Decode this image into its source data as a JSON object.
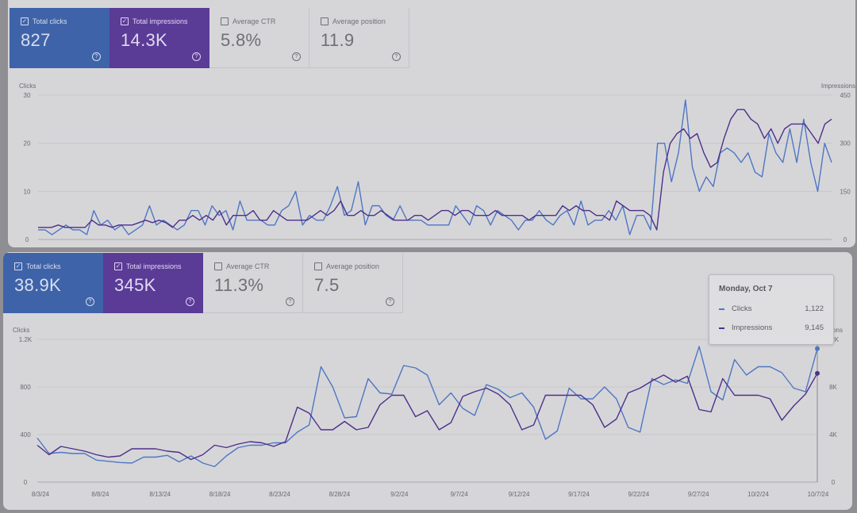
{
  "colors": {
    "clicks": "#4f76c2",
    "impressions": "#4e2f8a",
    "card_clicks_bg": "#3f63a8",
    "card_impr_bg": "#5a3b96"
  },
  "panel_top": {
    "cards": [
      {
        "label": "Total clicks",
        "value": "827",
        "checked": true
      },
      {
        "label": "Total impressions",
        "value": "14.3K",
        "checked": true
      },
      {
        "label": "Average CTR",
        "value": "5.8%",
        "checked": false
      },
      {
        "label": "Average position",
        "value": "11.9",
        "checked": false
      }
    ]
  },
  "panel_bottom": {
    "cards": [
      {
        "label": "Total clicks",
        "value": "38.9K",
        "checked": true
      },
      {
        "label": "Total impressions",
        "value": "345K",
        "checked": true
      },
      {
        "label": "Average CTR",
        "value": "11.3%",
        "checked": false
      },
      {
        "label": "Average position",
        "value": "7.5",
        "checked": false
      }
    ]
  },
  "tooltip": {
    "date": "Monday, Oct 7",
    "rows": [
      {
        "label": "Clicks",
        "value": "1,122"
      },
      {
        "label": "Impressions",
        "value": "9,145"
      }
    ]
  },
  "chart_data": [
    {
      "type": "line",
      "xlabel": "",
      "ylabel_left": "Clicks",
      "ylabel_right": "Impressions",
      "y_left_ticks": [
        "0",
        "10",
        "20",
        "30"
      ],
      "y_right_ticks": [
        "0",
        "150",
        "300",
        "450"
      ],
      "ylim_left": [
        0,
        30
      ],
      "ylim_right": [
        0,
        450
      ],
      "grid": true,
      "series": [
        {
          "name": "Clicks",
          "axis": "left",
          "values": [
            2,
            2,
            1,
            2,
            3,
            2,
            2,
            1,
            6,
            3,
            4,
            2,
            3,
            1,
            2,
            3,
            7,
            3,
            4,
            3,
            2,
            3,
            6,
            6,
            3,
            7,
            5,
            6,
            2,
            8,
            4,
            4,
            4,
            3,
            3,
            6,
            7,
            10,
            3,
            5,
            4,
            4,
            7,
            11,
            5,
            6,
            12,
            3,
            7,
            7,
            5,
            4,
            7,
            4,
            4,
            4,
            3,
            3,
            3,
            3,
            7,
            5,
            3,
            7,
            6,
            3,
            6,
            5,
            4,
            2,
            4,
            4,
            6,
            4,
            3,
            5,
            6,
            3,
            8,
            3,
            4,
            4,
            6,
            4,
            7,
            1,
            5,
            5,
            2,
            20,
            20,
            12,
            18,
            29,
            15,
            10,
            13,
            11,
            18,
            19,
            18,
            16,
            18,
            14,
            13,
            22,
            18,
            16,
            23,
            16,
            25,
            16,
            10,
            20,
            16
          ]
        },
        {
          "name": "Impressions",
          "axis": "left",
          "values": [
            2.5,
            2.5,
            2.5,
            3,
            2.5,
            2.5,
            2.5,
            2.5,
            4,
            3,
            3,
            2.5,
            3,
            3,
            3,
            3.5,
            4,
            3.5,
            4,
            3.5,
            2.5,
            4,
            4,
            5,
            4,
            5,
            4,
            6,
            3,
            5,
            5,
            5,
            6,
            4,
            4,
            6,
            5,
            4,
            4,
            4,
            4,
            5,
            6,
            5,
            6,
            8,
            5,
            5,
            6,
            5,
            5,
            6,
            5,
            4,
            4,
            4,
            5,
            5,
            4,
            5,
            6,
            6,
            5,
            6,
            6,
            5,
            5,
            5,
            6,
            5,
            5,
            5,
            5,
            4,
            5,
            5,
            5,
            5,
            7,
            6,
            7,
            6,
            6,
            5,
            5,
            4,
            8,
            7,
            6,
            6,
            6,
            5,
            2,
            14,
            20,
            22,
            23,
            21,
            22,
            18,
            15,
            16,
            21,
            25,
            27,
            27,
            25,
            24,
            21,
            23,
            20,
            23,
            24,
            24,
            24,
            22,
            20,
            24,
            25
          ]
        }
      ]
    },
    {
      "type": "line",
      "xlabel": "",
      "ylabel_left": "Clicks",
      "ylabel_right": "Impressions",
      "y_left_ticks": [
        "0",
        "400",
        "800",
        "1.2K"
      ],
      "y_right_ticks": [
        "0",
        "4K",
        "8K",
        "12K"
      ],
      "ylim_left": [
        0,
        1200
      ],
      "ylim_right": [
        0,
        12000
      ],
      "grid": true,
      "x_tick_labels": [
        "8/3/24",
        "8/8/24",
        "8/13/24",
        "8/18/24",
        "8/23/24",
        "8/28/24",
        "9/2/24",
        "9/7/24",
        "9/12/24",
        "9/17/24",
        "9/22/24",
        "9/27/24",
        "10/2/24",
        "10/7/24"
      ],
      "series": [
        {
          "name": "Clicks",
          "axis": "left",
          "values": [
            370,
            240,
            250,
            240,
            240,
            185,
            175,
            165,
            160,
            210,
            210,
            225,
            170,
            220,
            160,
            130,
            220,
            290,
            310,
            310,
            330,
            330,
            420,
            480,
            970,
            800,
            540,
            550,
            870,
            750,
            740,
            980,
            960,
            900,
            650,
            750,
            620,
            560,
            820,
            780,
            710,
            750,
            630,
            360,
            430,
            790,
            700,
            700,
            800,
            700,
            460,
            420,
            870,
            820,
            860,
            830,
            1140,
            760,
            690,
            1030,
            900,
            970,
            970,
            920,
            790,
            760,
            1122
          ]
        },
        {
          "name": "Impressions",
          "axis": "right",
          "values": [
            3100,
            2300,
            3000,
            2800,
            2600,
            2300,
            2100,
            2200,
            2800,
            2800,
            2800,
            2600,
            2500,
            1900,
            2300,
            3100,
            2900,
            3200,
            3400,
            3300,
            3000,
            3400,
            6300,
            5800,
            4400,
            4400,
            5100,
            4400,
            4600,
            6500,
            7300,
            7300,
            5500,
            6000,
            4400,
            5000,
            7200,
            7600,
            7900,
            7400,
            6500,
            4400,
            4800,
            7300,
            7300,
            7300,
            7300,
            6500,
            4600,
            5300,
            7500,
            7900,
            8500,
            9000,
            8400,
            8900,
            6100,
            5900,
            8700,
            7300,
            7300,
            7300,
            7000,
            5200,
            6400,
            7400,
            9145
          ]
        }
      ]
    }
  ]
}
